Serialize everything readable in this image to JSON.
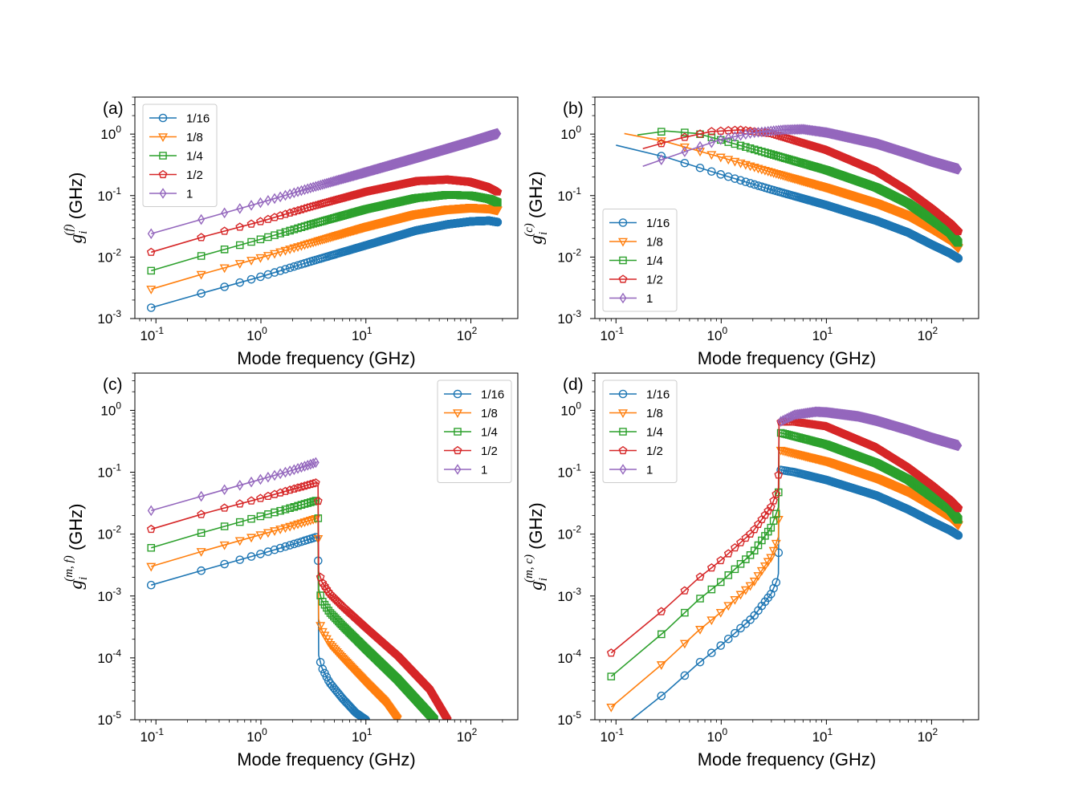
{
  "chart_data": [
    {
      "type": "line",
      "panel_label": "(a)",
      "xlabel": "Mode frequency (GHz)",
      "ylabel": {
        "symbol": "g",
        "subscript": "i",
        "superscript": "(f)",
        "unit": "(GHz)"
      },
      "xscale": "log",
      "yscale": "log",
      "xlim": [
        0.063,
        280
      ],
      "ylim": [
        0.001,
        4
      ],
      "xticks": [
        {
          "base": "10",
          "exp": "-1",
          "value": 0.1
        },
        {
          "base": "10",
          "exp": "0",
          "value": 1
        },
        {
          "base": "10",
          "exp": "1",
          "value": 10
        },
        {
          "base": "10",
          "exp": "2",
          "value": 100
        }
      ],
      "yticks": [
        {
          "base": "10",
          "exp": "-3",
          "value": 0.001
        },
        {
          "base": "10",
          "exp": "-2",
          "value": 0.01
        },
        {
          "base": "10",
          "exp": "-1",
          "value": 0.1
        },
        {
          "base": "10",
          "exp": "0",
          "value": 1
        }
      ],
      "legend_position": "upper-left",
      "series": [
        {
          "name": "1/16",
          "color": "#1f77b4",
          "marker": "circle",
          "x": [
            0.09,
            0.3,
            1,
            3,
            10,
            30,
            60,
            100,
            150,
            180
          ],
          "y": [
            0.0015,
            0.0027,
            0.0048,
            0.0085,
            0.0155,
            0.027,
            0.034,
            0.038,
            0.039,
            0.037
          ]
        },
        {
          "name": "1/8",
          "color": "#ff7f0e",
          "marker": "triangle-down",
          "x": [
            0.09,
            0.3,
            1,
            3,
            10,
            30,
            60,
            100,
            150,
            180
          ],
          "y": [
            0.003,
            0.0055,
            0.0098,
            0.017,
            0.031,
            0.05,
            0.06,
            0.064,
            0.062,
            0.058
          ]
        },
        {
          "name": "1/4",
          "color": "#2ca02c",
          "marker": "square",
          "x": [
            0.09,
            0.3,
            1,
            3,
            10,
            30,
            60,
            100,
            150,
            180
          ],
          "y": [
            0.006,
            0.011,
            0.0195,
            0.034,
            0.06,
            0.091,
            0.103,
            0.1,
            0.088,
            0.077
          ]
        },
        {
          "name": "1/2",
          "color": "#d62728",
          "marker": "pentagon",
          "x": [
            0.09,
            0.3,
            1,
            3,
            10,
            30,
            60,
            100,
            150,
            180
          ],
          "y": [
            0.012,
            0.022,
            0.038,
            0.066,
            0.115,
            0.17,
            0.18,
            0.165,
            0.135,
            0.115
          ]
        },
        {
          "name": "1",
          "color": "#9467bd",
          "marker": "diamond",
          "x": [
            0.09,
            0.3,
            1,
            3,
            10,
            30,
            60,
            100,
            150,
            180
          ],
          "y": [
            0.024,
            0.043,
            0.077,
            0.134,
            0.24,
            0.41,
            0.58,
            0.75,
            0.93,
            1.02
          ]
        }
      ]
    },
    {
      "type": "line",
      "panel_label": "(b)",
      "xlabel": "Mode frequency (GHz)",
      "ylabel": {
        "symbol": "g",
        "subscript": "i",
        "superscript": "(c)",
        "unit": "(GHz)"
      },
      "xscale": "log",
      "yscale": "log",
      "xlim": [
        0.063,
        280
      ],
      "ylim": [
        0.001,
        4
      ],
      "xticks": [
        {
          "base": "10",
          "exp": "-1",
          "value": 0.1
        },
        {
          "base": "10",
          "exp": "0",
          "value": 1
        },
        {
          "base": "10",
          "exp": "1",
          "value": 10
        },
        {
          "base": "10",
          "exp": "2",
          "value": 100
        }
      ],
      "yticks": [
        {
          "base": "10",
          "exp": "-3",
          "value": 0.001
        },
        {
          "base": "10",
          "exp": "-2",
          "value": 0.01
        },
        {
          "base": "10",
          "exp": "-1",
          "value": 0.1
        },
        {
          "base": "10",
          "exp": "0",
          "value": 1
        }
      ],
      "legend_position": "lower-left",
      "series": [
        {
          "name": "1/16",
          "color": "#1f77b4",
          "marker": "circle",
          "x": [
            0.1,
            0.3,
            1,
            3,
            10,
            30,
            60,
            100,
            150,
            180
          ],
          "y": [
            0.66,
            0.42,
            0.22,
            0.125,
            0.07,
            0.039,
            0.025,
            0.016,
            0.0115,
            0.0095
          ]
        },
        {
          "name": "1/8",
          "color": "#ff7f0e",
          "marker": "triangle-down",
          "x": [
            0.12,
            0.3,
            1,
            3,
            10,
            30,
            60,
            100,
            150,
            180
          ],
          "y": [
            1.02,
            0.75,
            0.42,
            0.24,
            0.135,
            0.075,
            0.047,
            0.029,
            0.019,
            0.014
          ]
        },
        {
          "name": "1/4",
          "color": "#2ca02c",
          "marker": "square",
          "x": [
            0.16,
            0.3,
            0.6,
            1,
            3,
            10,
            30,
            60,
            100,
            150,
            180
          ],
          "y": [
            0.97,
            1.12,
            1.02,
            0.8,
            0.47,
            0.26,
            0.135,
            0.075,
            0.041,
            0.025,
            0.017
          ]
        },
        {
          "name": "1/2",
          "color": "#d62728",
          "marker": "pentagon",
          "x": [
            0.18,
            0.4,
            0.8,
            1.5,
            3,
            10,
            30,
            60,
            100,
            150,
            180
          ],
          "y": [
            0.58,
            0.85,
            1.1,
            1.17,
            1.02,
            0.55,
            0.25,
            0.12,
            0.063,
            0.036,
            0.026
          ]
        },
        {
          "name": "1",
          "color": "#9467bd",
          "marker": "diamond",
          "x": [
            0.18,
            0.5,
            1,
            2,
            4,
            6,
            10,
            30,
            60,
            100,
            150,
            180
          ],
          "y": [
            0.3,
            0.55,
            0.82,
            1.05,
            1.18,
            1.2,
            1.06,
            0.7,
            0.48,
            0.36,
            0.295,
            0.27
          ]
        }
      ]
    },
    {
      "type": "line",
      "panel_label": "(c)",
      "xlabel": "Mode frequency (GHz)",
      "ylabel": {
        "symbol": "g",
        "subscript": "i",
        "superscript": "(m, f)",
        "unit": "(GHz)"
      },
      "xscale": "log",
      "yscale": "log",
      "xlim": [
        0.063,
        280
      ],
      "ylim": [
        1e-05,
        4
      ],
      "xticks": [
        {
          "base": "10",
          "exp": "-1",
          "value": 0.1
        },
        {
          "base": "10",
          "exp": "0",
          "value": 1
        },
        {
          "base": "10",
          "exp": "1",
          "value": 10
        },
        {
          "base": "10",
          "exp": "2",
          "value": 100
        }
      ],
      "yticks": [
        {
          "base": "10",
          "exp": "-5",
          "value": 1e-05
        },
        {
          "base": "10",
          "exp": "-4",
          "value": 0.0001
        },
        {
          "base": "10",
          "exp": "-3",
          "value": 0.001
        },
        {
          "base": "10",
          "exp": "-2",
          "value": 0.01
        },
        {
          "base": "10",
          "exp": "-1",
          "value": 0.1
        },
        {
          "base": "10",
          "exp": "0",
          "value": 1
        }
      ],
      "legend_position": "upper-right",
      "series": [
        {
          "name": "1/16",
          "color": "#1f77b4",
          "marker": "circle",
          "x": [
            0.09,
            0.3,
            1,
            2,
            3.4,
            3.5,
            3.55,
            3.8,
            4.5,
            6,
            8,
            10
          ],
          "y": [
            0.0015,
            0.0027,
            0.0048,
            0.0068,
            0.009,
            0.009,
            0.00011,
            7e-05,
            4e-05,
            2.2e-05,
            1.3e-05,
            1e-05
          ]
        },
        {
          "name": "1/8",
          "color": "#ff7f0e",
          "marker": "triangle-down",
          "x": [
            0.09,
            0.3,
            1,
            2,
            3.4,
            3.5,
            3.55,
            3.8,
            4.5,
            6,
            10,
            15,
            20
          ],
          "y": [
            0.003,
            0.0055,
            0.0098,
            0.0137,
            0.018,
            0.018,
            0.00042,
            0.00028,
            0.00017,
            0.0001,
            4e-05,
            2e-05,
            1e-05
          ]
        },
        {
          "name": "1/4",
          "color": "#2ca02c",
          "marker": "square",
          "x": [
            0.09,
            0.3,
            1,
            2,
            3.4,
            3.5,
            3.55,
            3.8,
            4.5,
            6,
            10,
            20,
            35,
            45
          ],
          "y": [
            0.006,
            0.011,
            0.0195,
            0.027,
            0.035,
            0.035,
            0.0013,
            0.00085,
            0.00055,
            0.00033,
            0.00014,
            4.5e-05,
            1.6e-05,
            1e-05
          ]
        },
        {
          "name": "1/2",
          "color": "#d62728",
          "marker": "pentagon",
          "x": [
            0.09,
            0.3,
            1,
            2,
            3.4,
            3.5,
            3.55,
            3.8,
            4.5,
            6,
            10,
            20,
            40,
            60
          ],
          "y": [
            0.012,
            0.022,
            0.038,
            0.053,
            0.068,
            0.066,
            0.0025,
            0.0017,
            0.0011,
            0.00068,
            0.00031,
            0.00011,
            3.2e-05,
            1e-05
          ]
        },
        {
          "name": "1",
          "color": "#9467bd",
          "marker": "diamond",
          "x": [
            0.09,
            0.3,
            1,
            2,
            3,
            3.5
          ],
          "y": [
            0.024,
            0.043,
            0.077,
            0.108,
            0.135,
            0.148
          ]
        }
      ]
    },
    {
      "type": "line",
      "panel_label": "(d)",
      "xlabel": "Mode frequency (GHz)",
      "ylabel": {
        "symbol": "g",
        "subscript": "i",
        "superscript": "(m, c)",
        "unit": "(GHz)"
      },
      "xscale": "log",
      "yscale": "log",
      "xlim": [
        0.063,
        280
      ],
      "ylim": [
        1e-05,
        4
      ],
      "xticks": [
        {
          "base": "10",
          "exp": "-1",
          "value": 0.1
        },
        {
          "base": "10",
          "exp": "0",
          "value": 1
        },
        {
          "base": "10",
          "exp": "1",
          "value": 10
        },
        {
          "base": "10",
          "exp": "2",
          "value": 100
        }
      ],
      "yticks": [
        {
          "base": "10",
          "exp": "-5",
          "value": 1e-05
        },
        {
          "base": "10",
          "exp": "-4",
          "value": 0.0001
        },
        {
          "base": "10",
          "exp": "-3",
          "value": 0.001
        },
        {
          "base": "10",
          "exp": "-2",
          "value": 0.01
        },
        {
          "base": "10",
          "exp": "-1",
          "value": 0.1
        },
        {
          "base": "10",
          "exp": "0",
          "value": 1
        }
      ],
      "legend_position": "upper-left",
      "series": [
        {
          "name": "1/16",
          "color": "#1f77b4",
          "marker": "circle",
          "x": [
            0.14,
            0.3,
            0.6,
            1,
            2,
            3,
            3.4,
            3.5,
            3.55,
            5,
            10,
            30,
            60,
            100,
            150,
            180
          ],
          "y": [
            1e-05,
            2.8e-05,
            8e-05,
            0.00016,
            0.00045,
            0.0011,
            0.0018,
            0.0023,
            0.11,
            0.1,
            0.075,
            0.042,
            0.025,
            0.016,
            0.0115,
            0.0095
          ]
        },
        {
          "name": "1/8",
          "color": "#ff7f0e",
          "marker": "triangle-down",
          "x": [
            0.09,
            0.3,
            0.6,
            1,
            2,
            3,
            3.5,
            3.55,
            5,
            10,
            30,
            60,
            100,
            150,
            180
          ],
          "y": [
            1.6e-05,
            9e-05,
            0.00027,
            0.00055,
            0.0016,
            0.0043,
            0.009,
            0.23,
            0.2,
            0.15,
            0.08,
            0.048,
            0.029,
            0.019,
            0.014
          ]
        },
        {
          "name": "1/4",
          "color": "#2ca02c",
          "marker": "square",
          "x": [
            0.09,
            0.3,
            0.6,
            1,
            2,
            3,
            3.5,
            3.55,
            5,
            10,
            30,
            60,
            100,
            150,
            180
          ],
          "y": [
            5e-05,
            0.00028,
            0.00085,
            0.0017,
            0.005,
            0.013,
            0.027,
            0.44,
            0.38,
            0.28,
            0.14,
            0.076,
            0.041,
            0.025,
            0.017
          ]
        },
        {
          "name": "1/2",
          "color": "#d62728",
          "marker": "pentagon",
          "x": [
            0.09,
            0.3,
            0.6,
            1,
            2,
            3,
            3.5,
            3.55,
            5,
            10,
            30,
            60,
            100,
            150,
            180
          ],
          "y": [
            0.00012,
            0.00065,
            0.0019,
            0.0038,
            0.011,
            0.028,
            0.055,
            0.65,
            0.65,
            0.55,
            0.25,
            0.12,
            0.063,
            0.036,
            0.026
          ]
        },
        {
          "name": "1",
          "color": "#9467bd",
          "marker": "diamond",
          "x": [
            3.6,
            5,
            8,
            10,
            20,
            30,
            60,
            100,
            150,
            180
          ],
          "y": [
            0.65,
            0.85,
            0.95,
            0.93,
            0.8,
            0.68,
            0.48,
            0.36,
            0.295,
            0.27
          ]
        }
      ]
    }
  ]
}
